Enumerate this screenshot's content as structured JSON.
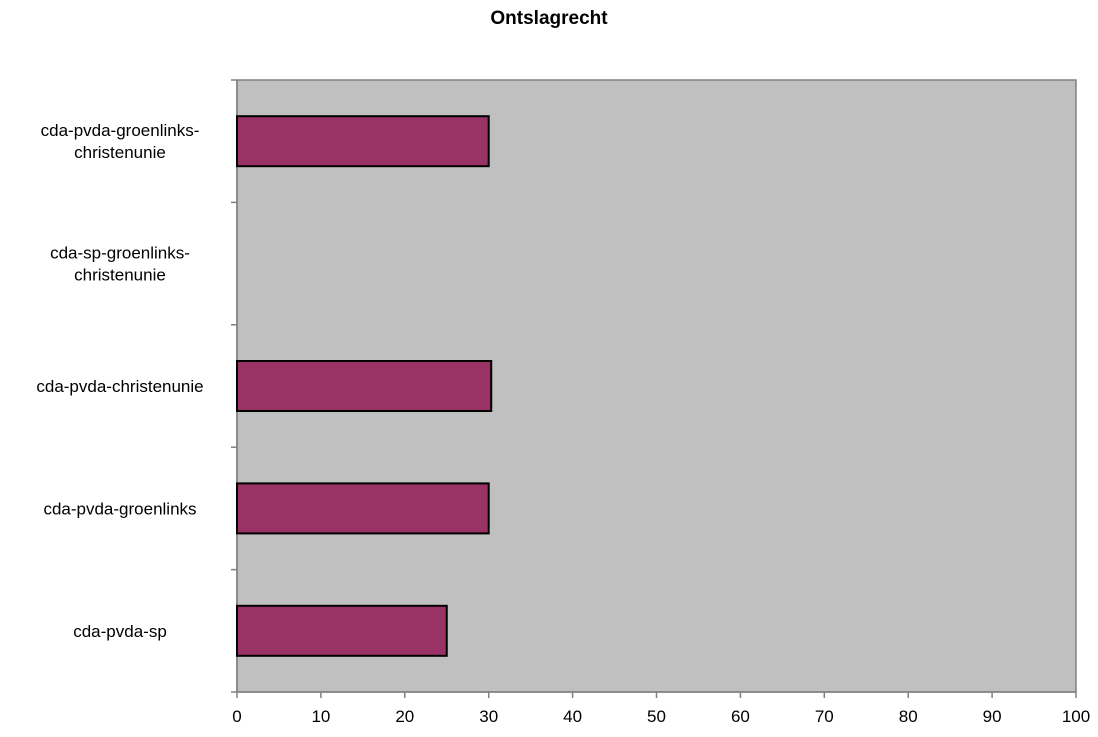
{
  "chart_data": {
    "type": "bar",
    "orientation": "horizontal",
    "title": "Ontslagrecht",
    "xlabel": "",
    "ylabel": "",
    "xlim": [
      0,
      100
    ],
    "x_ticks": [
      "0",
      "10",
      "20",
      "30",
      "40",
      "50",
      "60",
      "70",
      "80",
      "90",
      "100"
    ],
    "categories": [
      [
        "cda-pvda-groenlinks-",
        "christenunie"
      ],
      [
        "cda-sp-groenlinks-",
        "christenunie"
      ],
      [
        "cda-pvda-christenunie"
      ],
      [
        "cda-pvda-groenlinks"
      ],
      [
        "cda-pvda-sp"
      ]
    ],
    "values": [
      30,
      0,
      30.3,
      30,
      25
    ],
    "grid": false,
    "legend": "none",
    "colors": {
      "bar_fill": "#993366",
      "bar_stroke": "#000000",
      "plot_background": "#c0c0c0",
      "axis": "#808080"
    }
  }
}
